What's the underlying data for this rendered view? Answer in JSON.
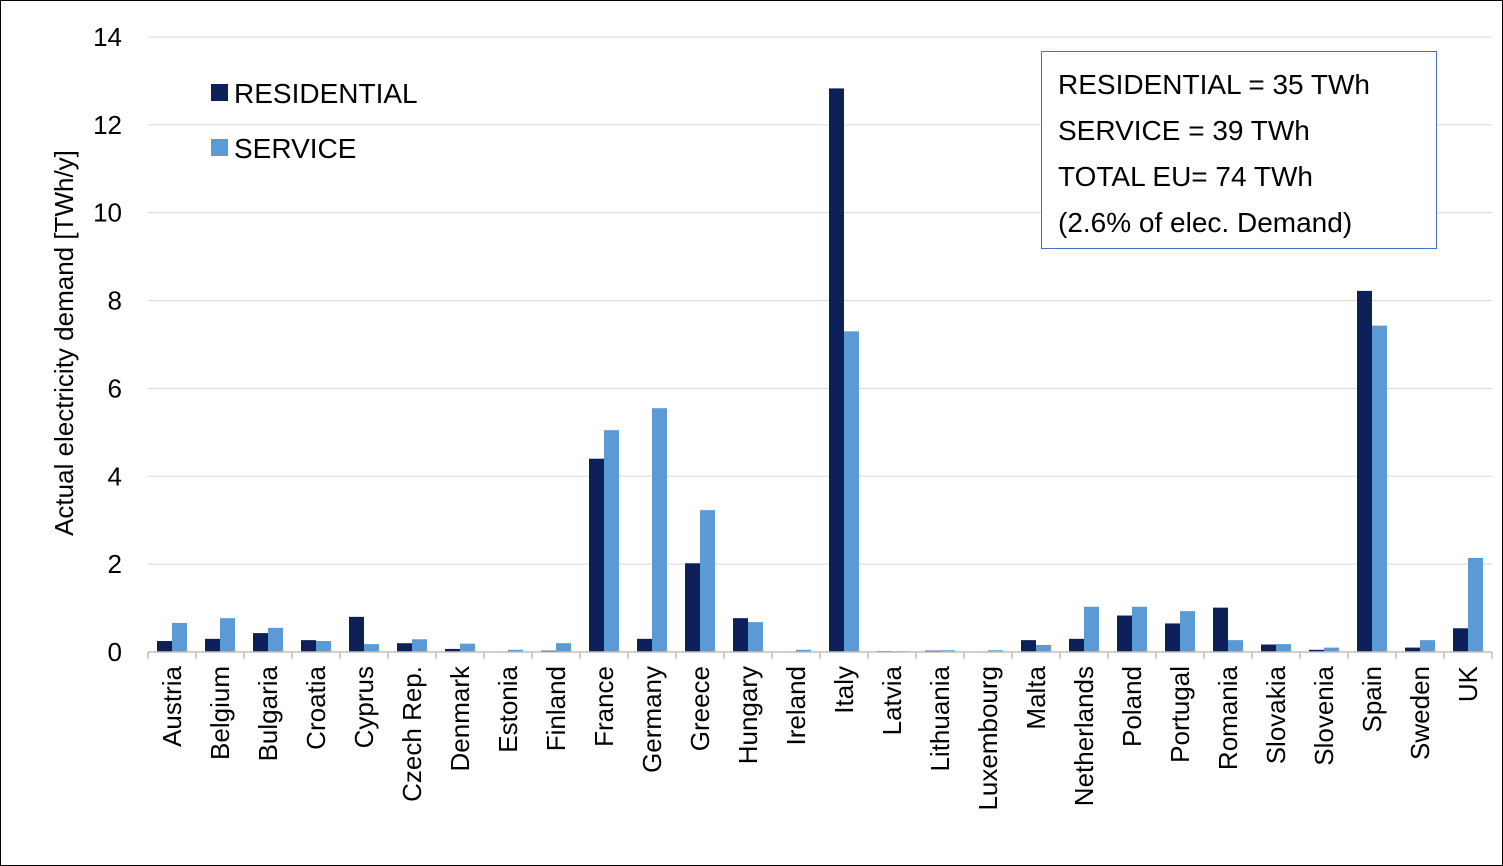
{
  "chart_data": {
    "type": "bar",
    "title": "",
    "xlabel": "",
    "ylabel": "Actual electricity demand [TWh/y]",
    "ylim": [
      0,
      14
    ],
    "yticks": [
      0,
      2,
      4,
      6,
      8,
      10,
      12,
      14
    ],
    "grid": true,
    "legend_position": "top-left",
    "categories": [
      "Austria",
      "Belgium",
      "Bulgaria",
      "Croatia",
      "Cyprus",
      "Czech Rep.",
      "Denmark",
      "Estonia",
      "Finland",
      "France",
      "Germany",
      "Greece",
      "Hungary",
      "Ireland",
      "Italy",
      "Latvia",
      "Lithuania",
      "Luxembourg",
      "Malta",
      "Netherlands",
      "Poland",
      "Portugal",
      "Romania",
      "Slovakia",
      "Slovenia",
      "Spain",
      "Sweden",
      "UK"
    ],
    "series": [
      {
        "name": "RESIDENTIAL",
        "color": "#0d2058",
        "values": [
          0.25,
          0.3,
          0.43,
          0.27,
          0.8,
          0.2,
          0.07,
          0.0,
          0.03,
          4.4,
          0.3,
          2.02,
          0.77,
          0.0,
          12.83,
          0.02,
          0.03,
          0.0,
          0.27,
          0.3,
          0.83,
          0.65,
          1.01,
          0.17,
          0.05,
          8.22,
          0.1,
          0.54
        ]
      },
      {
        "name": "SERVICE",
        "color": "#5b9bd5",
        "values": [
          0.66,
          0.77,
          0.55,
          0.25,
          0.18,
          0.29,
          0.19,
          0.05,
          0.2,
          5.05,
          5.55,
          3.23,
          0.68,
          0.05,
          7.3,
          0.02,
          0.04,
          0.04,
          0.16,
          1.03,
          1.03,
          0.93,
          0.27,
          0.18,
          0.1,
          7.43,
          0.27,
          2.14
        ]
      }
    ],
    "annotations": [
      "RESIDENTIAL = 35 TWh",
      "SERVICE = 39 TWh",
      "TOTAL EU= 74 TWh",
      "(2.6% of elec. Demand)"
    ]
  }
}
